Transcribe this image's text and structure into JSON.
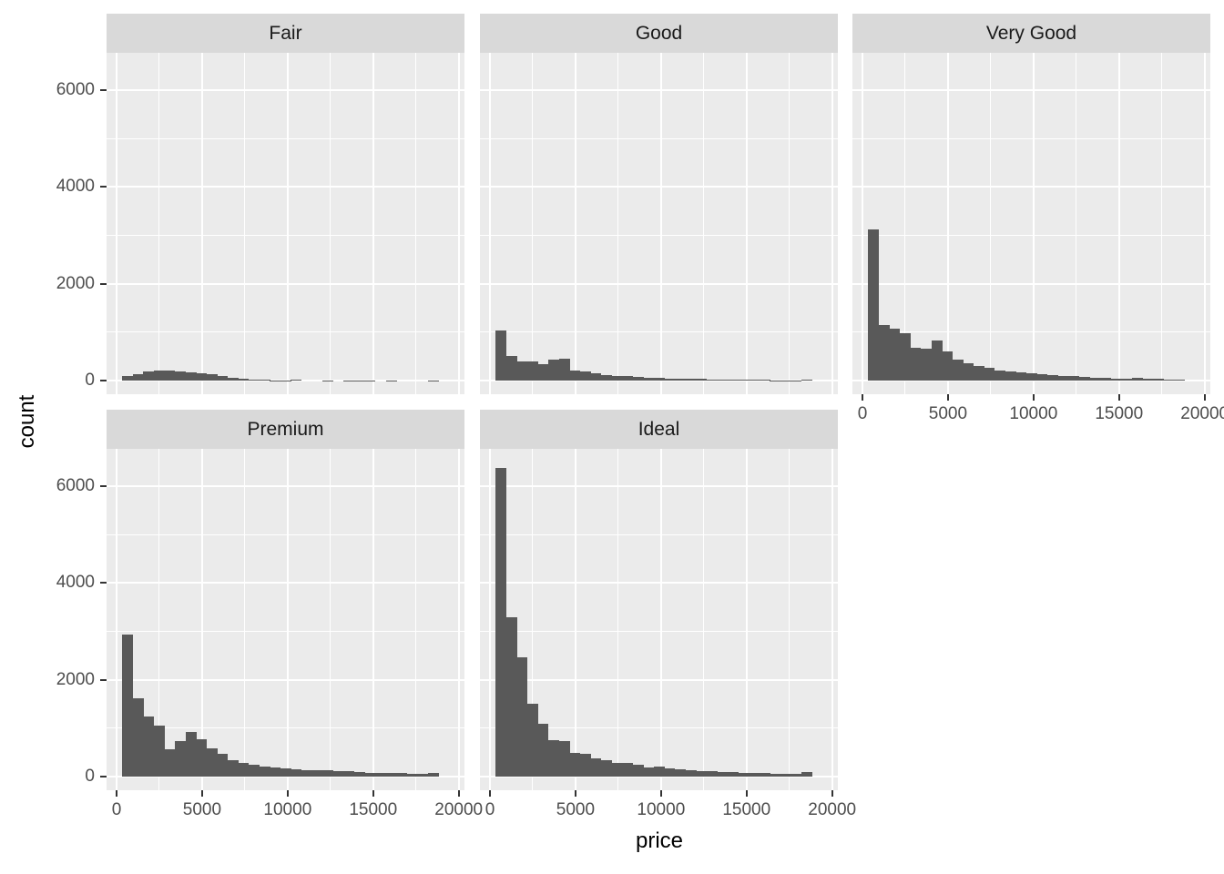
{
  "chart_data": {
    "type": "bar",
    "variant": "faceted-histogram",
    "title": "",
    "xlabel": "price",
    "ylabel": "count",
    "x_ticks": [
      0,
      5000,
      10000,
      15000,
      20000
    ],
    "x_minor_ticks": [
      2500,
      7500,
      12500,
      17500
    ],
    "y_ticks": [
      0,
      2000,
      4000,
      6000
    ],
    "y_minor_ticks": [
      1000,
      3000,
      5000
    ],
    "xlim": [
      -600,
      19750
    ],
    "ylim": [
      -285,
      6775
    ],
    "bin_start": 326,
    "bin_width": 616.57,
    "grid": "on",
    "legend": "none",
    "facets": [
      {
        "label": "Fair",
        "row": 0,
        "col": 0,
        "x_axis": false,
        "y_axis": true,
        "values": [
          95,
          140,
          185,
          205,
          215,
          190,
          170,
          150,
          130,
          85,
          52,
          35,
          22,
          14,
          8,
          5,
          12,
          0,
          0,
          8,
          0,
          3,
          2,
          2,
          0,
          2,
          0,
          0,
          0,
          2
        ]
      },
      {
        "label": "Good",
        "row": 0,
        "col": 1,
        "x_axis": false,
        "y_axis": false,
        "values": [
          1030,
          510,
          390,
          400,
          345,
          425,
          450,
          215,
          180,
          150,
          120,
          100,
          85,
          72,
          62,
          52,
          45,
          40,
          34,
          40,
          25,
          20,
          15,
          12,
          10,
          10,
          8,
          8,
          6,
          10
        ]
      },
      {
        "label": "Very Good",
        "row": 0,
        "col": 2,
        "x_axis": true,
        "y_axis": false,
        "values": [
          3130,
          1145,
          1065,
          970,
          680,
          650,
          835,
          595,
          430,
          365,
          300,
          270,
          200,
          185,
          160,
          145,
          125,
          105,
          95,
          85,
          72,
          62,
          52,
          46,
          42,
          60,
          40,
          32,
          26,
          20
        ]
      },
      {
        "label": "Premium",
        "row": 1,
        "col": 0,
        "x_axis": true,
        "y_axis": true,
        "values": [
          2925,
          1625,
          1240,
          1050,
          560,
          725,
          920,
          765,
          575,
          465,
          330,
          275,
          240,
          200,
          182,
          163,
          145,
          135,
          126,
          135,
          117,
          107,
          88,
          80,
          79,
          70,
          70,
          60,
          51,
          70
        ]
      },
      {
        "label": "Ideal",
        "row": 1,
        "col": 1,
        "x_axis": true,
        "y_axis": false,
        "values": [
          6370,
          3300,
          2460,
          1500,
          1090,
          750,
          740,
          490,
          470,
          375,
          340,
          280,
          280,
          245,
          190,
          200,
          170,
          150,
          130,
          120,
          110,
          100,
          90,
          80,
          75,
          70,
          65,
          60,
          55,
          95
        ]
      }
    ]
  },
  "colors": {
    "background": "#ffffff",
    "panel_background": "#ebebeb",
    "strip_background": "#d9d9d9",
    "bar_fill": "#595959",
    "gridline": "#ffffff",
    "tick_mark": "#333333",
    "tick_label_text": "#4d4d4d",
    "strip_text": "#1a1a1a",
    "axis_title_text": "#000000"
  }
}
